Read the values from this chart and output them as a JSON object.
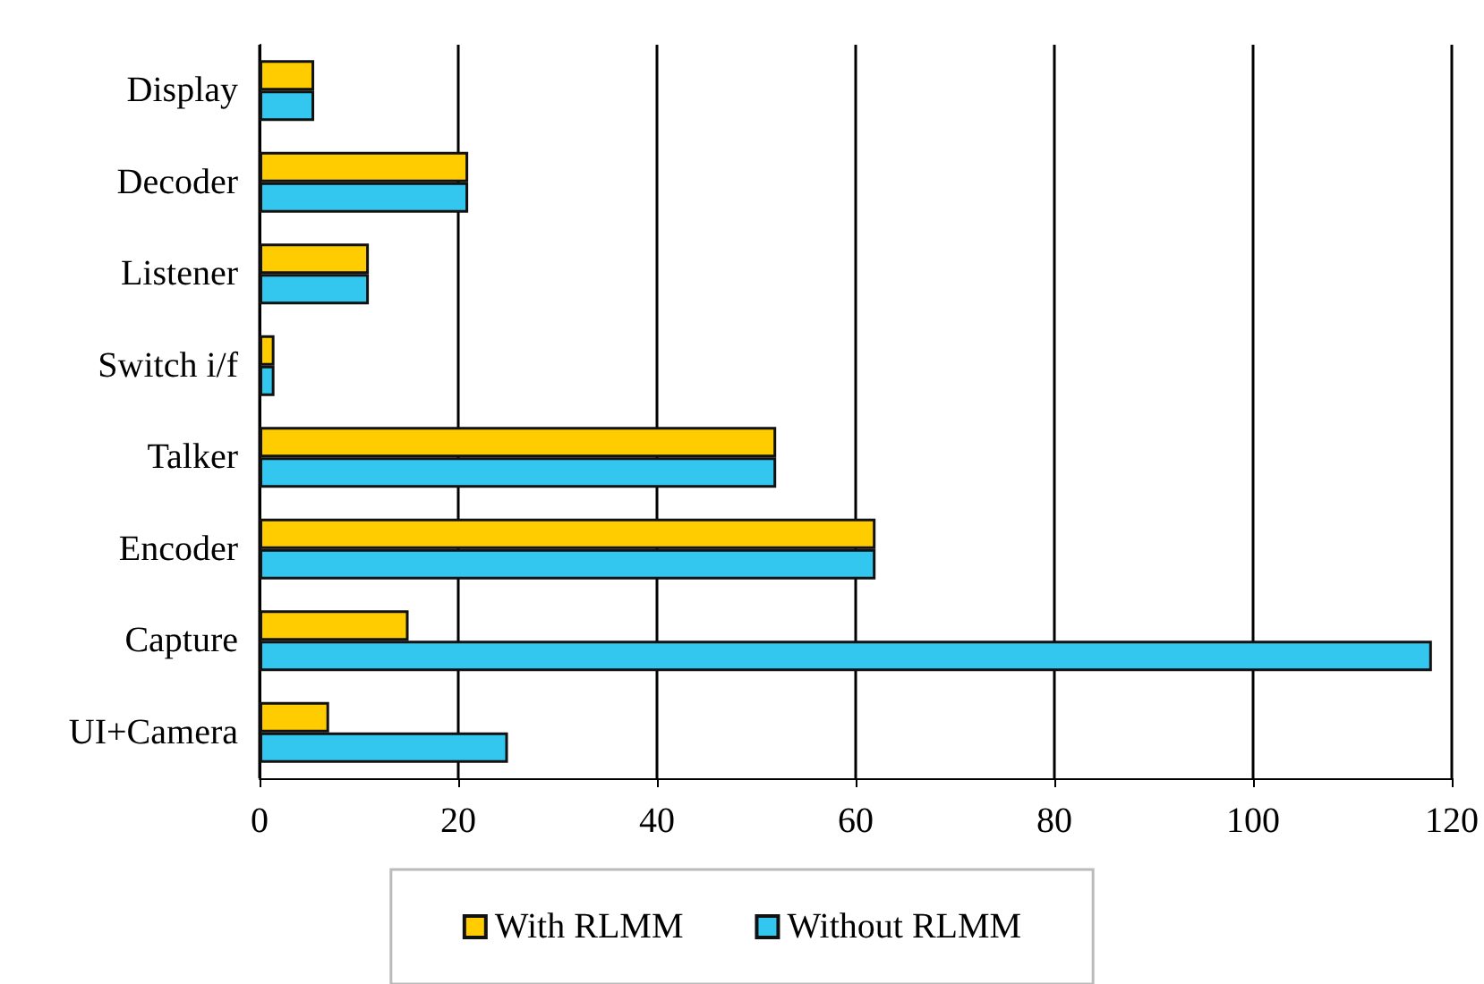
{
  "chart_data": {
    "type": "bar",
    "orientation": "horizontal",
    "categories": [
      "Display",
      "Decoder",
      "Listener",
      "Switch i/f",
      "Talker",
      "Encoder",
      "Capture",
      "UI+Camera"
    ],
    "series": [
      {
        "name": "With RLMM",
        "color": "#ffcc00",
        "values": [
          5.5,
          21,
          11,
          1.5,
          52,
          62,
          15,
          7
        ]
      },
      {
        "name": "Without RLMM",
        "color": "#33c6ee",
        "values": [
          5.5,
          21,
          11,
          1.5,
          52,
          62,
          118,
          25
        ]
      }
    ],
    "xlim": [
      0,
      120
    ],
    "xticks": [
      0,
      20,
      40,
      60,
      80,
      100,
      120
    ],
    "grid": "x",
    "legend": "bottom"
  }
}
